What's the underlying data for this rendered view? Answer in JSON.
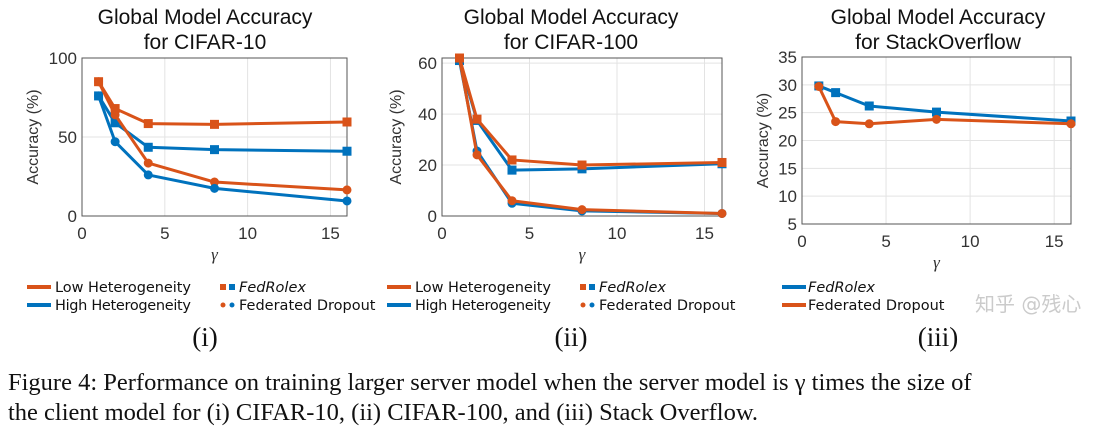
{
  "colors": {
    "low_or_fd": "#D95319",
    "high_or_fedrolex": "#0072BD",
    "grid": "#e3e3e3",
    "axis": "#262626"
  },
  "chart_data": [
    {
      "type": "line",
      "title": [
        "Global Model Accuracy",
        "for CIFAR-10"
      ],
      "xlabel": "γ",
      "ylabel": "Accuracy (%)",
      "xlim": [
        0,
        16
      ],
      "ylim": [
        0,
        100
      ],
      "xticks": [
        0,
        5,
        10,
        15
      ],
      "yticks": [
        0,
        50,
        100
      ],
      "grid": true,
      "x": [
        1,
        2,
        4,
        8,
        16
      ],
      "legend": {
        "lines": [
          {
            "label": "Low Heterogeneity",
            "color": "#D95319"
          },
          {
            "label": "High Heterogeneity",
            "color": "#0072BD"
          }
        ],
        "markers": [
          {
            "label": "FedRolex",
            "marker": "square",
            "italic": true
          },
          {
            "label": "Federated Dropout",
            "marker": "circle"
          }
        ]
      },
      "series": [
        {
          "method": "FedRolex",
          "heterogeneity": "Low Heterogeneity",
          "color": "#D95319",
          "marker": "square",
          "values": [
            85,
            68,
            58.5,
            58,
            59.5
          ]
        },
        {
          "method": "FedRolex",
          "heterogeneity": "High Heterogeneity",
          "color": "#0072BD",
          "marker": "square",
          "values": [
            76,
            59,
            43.5,
            42,
            41
          ]
        },
        {
          "method": "Federated Dropout",
          "heterogeneity": "Low Heterogeneity",
          "color": "#D95319",
          "marker": "circle",
          "values": [
            85,
            64,
            33.5,
            21.5,
            16.5
          ]
        },
        {
          "method": "Federated Dropout",
          "heterogeneity": "High Heterogeneity",
          "color": "#0072BD",
          "marker": "circle",
          "values": [
            76,
            47,
            26,
            17.5,
            9.5
          ]
        }
      ],
      "sublabel": "(i)"
    },
    {
      "type": "line",
      "title": [
        "Global Model Accuracy",
        "for CIFAR-100"
      ],
      "xlabel": "γ",
      "ylabel": "Accuracy (%)",
      "xlim": [
        0,
        16
      ],
      "ylim": [
        0,
        62
      ],
      "xticks": [
        0,
        5,
        10,
        15
      ],
      "yticks": [
        0,
        20,
        40,
        60
      ],
      "grid": true,
      "x": [
        1,
        2,
        4,
        8,
        16
      ],
      "legend": {
        "lines": [
          {
            "label": "Low Heterogeneity",
            "color": "#D95319"
          },
          {
            "label": "High Heterogeneity",
            "color": "#0072BD"
          }
        ],
        "markers": [
          {
            "label": "FedRolex",
            "marker": "square",
            "italic": true
          },
          {
            "label": "Federated Dropout",
            "marker": "circle"
          }
        ]
      },
      "series": [
        {
          "method": "FedRolex",
          "heterogeneity": "High Heterogeneity",
          "color": "#0072BD",
          "marker": "square",
          "values": [
            61,
            37.5,
            18,
            18.5,
            20.5
          ]
        },
        {
          "method": "Federated Dropout",
          "heterogeneity": "High Heterogeneity",
          "color": "#0072BD",
          "marker": "circle",
          "values": [
            61,
            25.5,
            5,
            2,
            1
          ]
        },
        {
          "method": "FedRolex",
          "heterogeneity": "Low Heterogeneity",
          "color": "#D95319",
          "marker": "square",
          "values": [
            62,
            38,
            22,
            20,
            21
          ]
        },
        {
          "method": "Federated Dropout",
          "heterogeneity": "Low Heterogeneity",
          "color": "#D95319",
          "marker": "circle",
          "values": [
            62,
            24,
            6,
            2.5,
            1
          ]
        }
      ],
      "sublabel": "(ii)"
    },
    {
      "type": "line",
      "title": [
        "Global Model Accuracy",
        "for StackOverflow"
      ],
      "xlabel": "γ",
      "ylabel": "Accuracy (%)",
      "xlim": [
        0,
        16
      ],
      "ylim": [
        5,
        35
      ],
      "xticks": [
        0,
        5,
        10,
        15
      ],
      "yticks": [
        5,
        10,
        15,
        20,
        25,
        30,
        35
      ],
      "grid": true,
      "x": [
        1,
        2,
        4,
        8,
        16
      ],
      "legend": {
        "entries": [
          {
            "label": "FedRolex",
            "color": "#0072BD",
            "marker": "square",
            "italic": true
          },
          {
            "label": "Federated Dropout",
            "color": "#D95319",
            "marker": "circle"
          }
        ]
      },
      "series": [
        {
          "name": "FedRolex",
          "color": "#0072BD",
          "marker": "square",
          "values": [
            29.8,
            28.6,
            26.2,
            25.1,
            23.5
          ]
        },
        {
          "name": "Federated Dropout",
          "color": "#D95319",
          "marker": "circle",
          "values": [
            29.7,
            23.4,
            23.0,
            23.8,
            23.0
          ]
        }
      ],
      "sublabel": "(iii)"
    }
  ],
  "caption": {
    "line1": "Figure 4:  Performance on training larger server model when the server model is γ times the size of",
    "line2": "the client model for (i) CIFAR-10, (ii) CIFAR-100, and (iii) Stack Overflow."
  },
  "watermark": "知乎 @残心"
}
